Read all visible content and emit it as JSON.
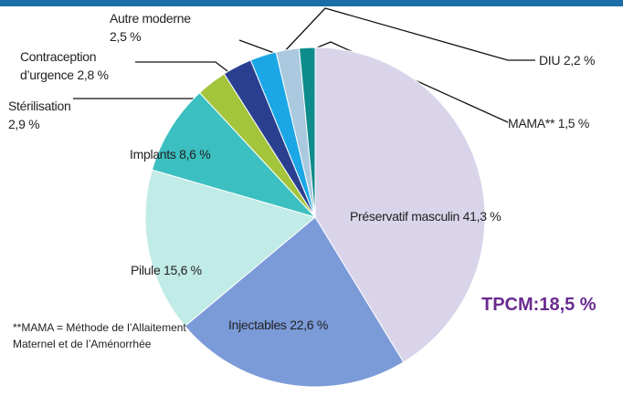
{
  "chart_data": {
    "type": "pie",
    "categories": [
      "Préservatif masculin",
      "Injectables",
      "Pilule",
      "Implants",
      "Stérilisation",
      "Contraception d’urgence",
      "Autre moderne",
      "DIU",
      "MAMA**"
    ],
    "values": [
      41.3,
      22.6,
      15.6,
      8.6,
      2.9,
      2.8,
      2.5,
      2.2,
      1.5
    ],
    "value_labels": [
      "41,3 %",
      "22,6 %",
      "15,6 %",
      "8,6 %",
      "2,9 %",
      "2,8 %",
      "2,5 %",
      "2,2 %",
      "1,5 %"
    ],
    "colors": [
      "#d9d4ea",
      "#7b9ad8",
      "#c1ebe6",
      "#3cbfc0",
      "#a4c43b",
      "#2a3f8f",
      "#1ba7e6",
      "#aac9df",
      "#0e8b8b"
    ],
    "annotation": "TPCM:18,5 %",
    "note": "**MAMA = Méthode de l’Allaitement Maternel et de l’Aménorrhée"
  }
}
